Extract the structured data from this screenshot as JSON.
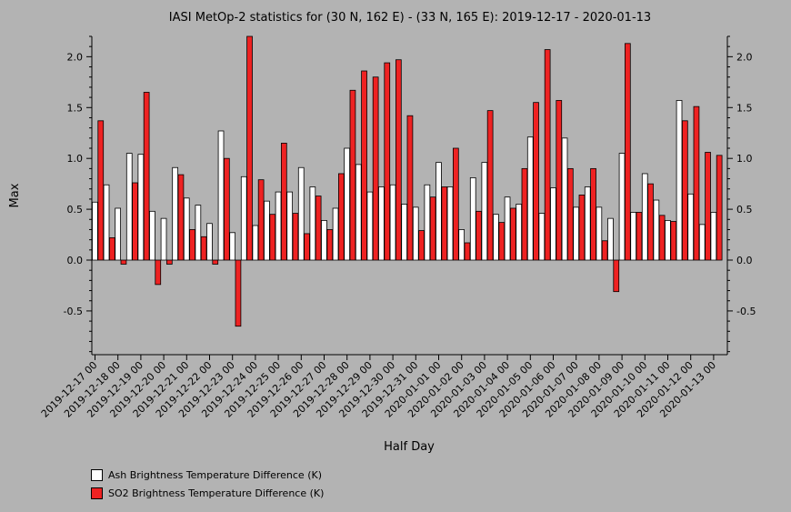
{
  "chart_data": {
    "type": "bar",
    "title": "IASI MetOp-2 statistics for (30 N, 162 E) - (33 N, 165 E): 2019-12-17 - 2020-01-13",
    "xlabel": "Half Day",
    "ylabel": "Max",
    "ylim": [
      -0.93,
      2.2
    ],
    "yticks": [
      -0.5,
      0.0,
      0.5,
      1.0,
      1.5,
      2.0
    ],
    "ytick_labels": [
      "-0.5",
      "0.0",
      "0.5",
      "1.0",
      "1.5",
      "2.0"
    ],
    "xtick_labels": [
      "2019-12-17 00",
      "2019-12-18 00",
      "2019-12-19 00",
      "2019-12-20 00",
      "2019-12-21 00",
      "2019-12-22 00",
      "2019-12-23 00",
      "2019-12-24 00",
      "2019-12-25 00",
      "2019-12-26 00",
      "2019-12-27 00",
      "2019-12-28 00",
      "2019-12-29 00",
      "2019-12-30 00",
      "2019-12-31 00",
      "2020-01-01 00",
      "2020-01-02 00",
      "2020-01-03 00",
      "2020-01-04 00",
      "2020-01-05 00",
      "2020-01-06 00",
      "2020-01-07 00",
      "2020-01-08 00",
      "2020-01-09 00",
      "2020-01-10 00",
      "2020-01-11 00",
      "2020-01-12 00",
      "2020-01-13 00"
    ],
    "grid": false,
    "legend_position": "bottom-left",
    "series": [
      {
        "name": "Ash Brightness Temperature Difference (K)",
        "color": "#ffffff",
        "values": [
          0.57,
          0.74,
          0.51,
          1.05,
          1.04,
          0.48,
          0.41,
          0.91,
          0.61,
          0.54,
          0.36,
          1.27,
          0.27,
          0.82,
          0.34,
          0.58,
          0.67,
          0.67,
          0.91,
          0.72,
          0.39,
          0.51,
          1.1,
          0.94,
          0.67,
          0.72,
          0.74,
          0.55,
          0.52,
          0.74,
          0.96,
          0.72,
          0.3,
          0.81,
          0.96,
          0.45,
          0.62,
          0.55,
          1.21,
          0.46,
          0.71,
          1.2,
          0.52,
          0.72,
          0.52,
          0.41,
          1.05,
          0.47,
          0.85,
          0.59,
          0.39,
          1.57,
          0.65,
          0.35,
          0.47
        ]
      },
      {
        "name": "SO2 Brightness Temperature Difference (K)",
        "color": "#ee2222",
        "values": [
          1.37,
          0.22,
          -0.04,
          0.76,
          1.65,
          -0.24,
          -0.04,
          0.84,
          0.3,
          0.23,
          -0.04,
          1.0,
          -0.65,
          2.2,
          0.79,
          0.45,
          1.15,
          0.46,
          0.26,
          0.63,
          0.3,
          0.85,
          1.67,
          1.86,
          1.8,
          1.94,
          1.97,
          1.42,
          0.29,
          0.62,
          0.72,
          1.1,
          0.17,
          0.48,
          1.47,
          0.37,
          0.51,
          0.9,
          1.55,
          2.07,
          1.57,
          0.9,
          0.64,
          0.9,
          0.19,
          -0.31,
          2.13,
          0.47,
          0.75,
          0.44,
          0.38,
          1.37,
          1.51,
          1.06,
          1.03
        ]
      }
    ]
  }
}
